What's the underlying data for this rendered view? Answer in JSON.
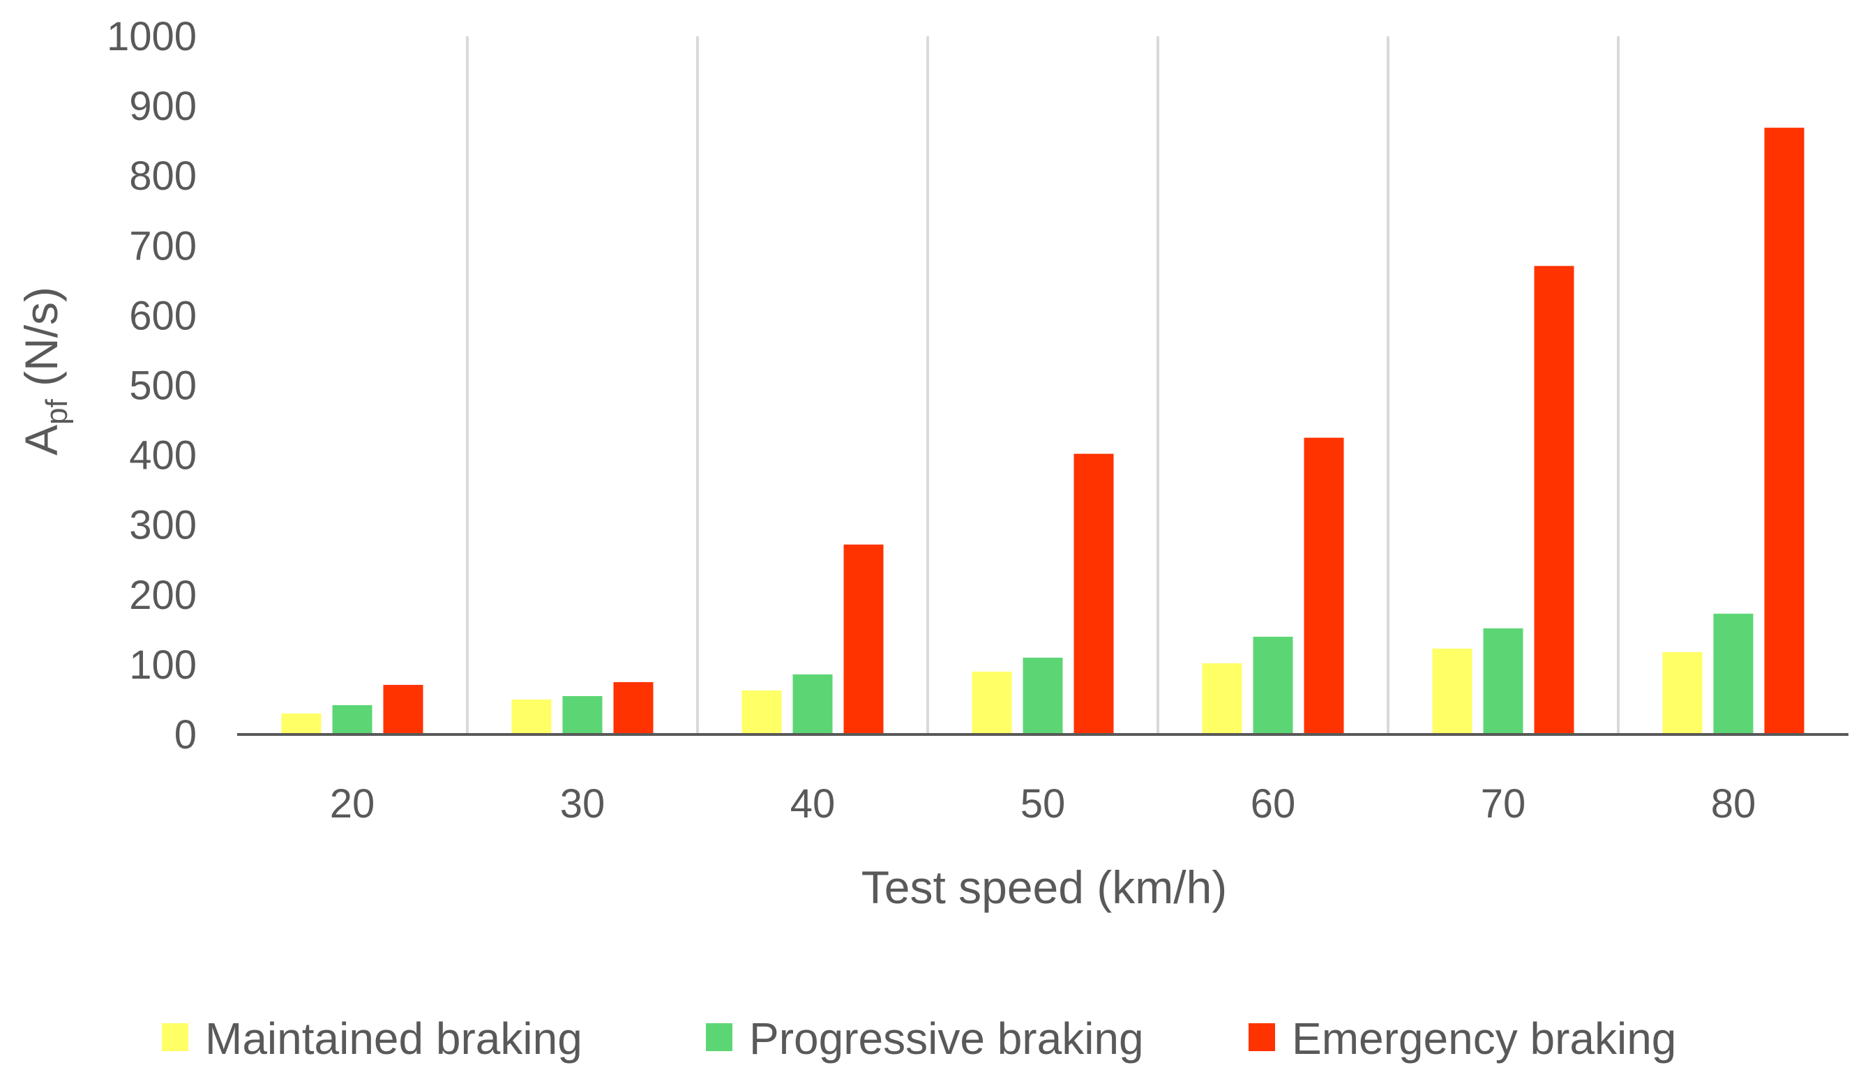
{
  "chart_data": {
    "type": "bar",
    "title": "",
    "xlabel": "Test speed (km/h)",
    "ylabel": {
      "main": "A",
      "subscript": "pf",
      "unit": " (N/s)"
    },
    "categories": [
      "20",
      "30",
      "40",
      "50",
      "60",
      "70",
      "80"
    ],
    "ylim": [
      0,
      1000
    ],
    "yticks": [
      0,
      100,
      200,
      300,
      400,
      500,
      600,
      700,
      800,
      900,
      1000
    ],
    "grid": "vertical category separators",
    "legend_position": "bottom",
    "series": [
      {
        "name": "Maintained braking",
        "color": "#FFFF66",
        "values": [
          30,
          50,
          63,
          90,
          102,
          123,
          118
        ]
      },
      {
        "name": "Progressive braking",
        "color": "#5CD675",
        "values": [
          42,
          55,
          86,
          110,
          140,
          152,
          173
        ]
      },
      {
        "name": "Emergency braking",
        "color": "#FF3300",
        "values": [
          71,
          75,
          272,
          402,
          425,
          671,
          869
        ]
      }
    ],
    "colors": {
      "text": "#595959",
      "axis": "#595959",
      "grid": "#D9D9D9"
    }
  }
}
